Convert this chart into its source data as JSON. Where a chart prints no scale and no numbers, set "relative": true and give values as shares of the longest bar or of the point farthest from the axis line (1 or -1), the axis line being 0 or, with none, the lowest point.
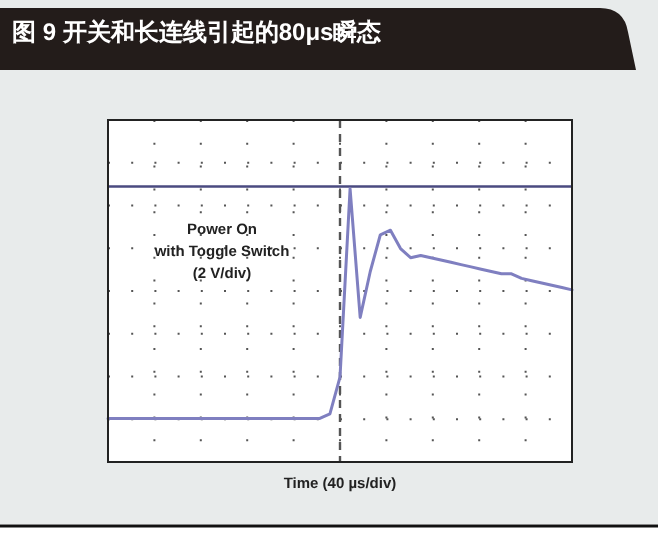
{
  "chart_data": {
    "type": "line",
    "title": "图 9 开关和长连线引起的80μs瞬态",
    "xlabel": "Time (40 µs/div)",
    "relative": true,
    "grid": true,
    "marker": "none",
    "line_style": "solid",
    "annotations": [
      "Power On\nwith Toggle Switch\n(2 V/div)"
    ],
    "categories": [
      null,
      null,
      null,
      null,
      null,
      null,
      null,
      null,
      null,
      null,
      null,
      null,
      null,
      null,
      null,
      null,
      null,
      null,
      null,
      null,
      null,
      null,
      null,
      null,
      null,
      null,
      null,
      null,
      null,
      null,
      null,
      null,
      null,
      null,
      null,
      null,
      null,
      null,
      null,
      null,
      null,
      null,
      null,
      null,
      null,
      null,
      null
    ],
    "series": [
      {
        "color": "#7f7fc0",
        "values": [
          0,
          0,
          0,
          0,
          0,
          0,
          0,
          0,
          0,
          0,
          0,
          0,
          0,
          0,
          0,
          0,
          0,
          0,
          0,
          0,
          0,
          0,
          0.02,
          0.18,
          1,
          0.44,
          0.64,
          0.8,
          0.82,
          0.74,
          0.7,
          0.71,
          0.7,
          0.69,
          0.68,
          0.67,
          0.66,
          0.65,
          0.64,
          0.63,
          0.63,
          0.61,
          0.6,
          0.59,
          0.58,
          0.57,
          0.56
        ]
      }
    ],
    "ref_lines": [
      {
        "axis": "y",
        "value": 1.01,
        "color": "#4a4a80",
        "line_style": "solid"
      }
    ]
  }
}
